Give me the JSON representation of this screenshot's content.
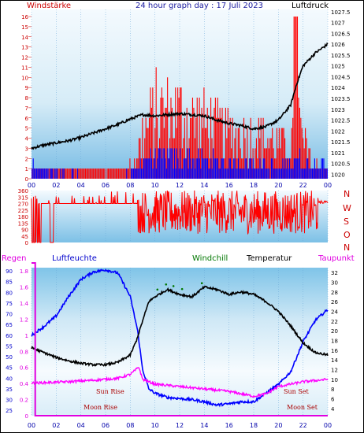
{
  "header": {
    "left_label": "Windstärke",
    "title": "24 hour graph day : 17 Juli 2023",
    "right_label": "Luftdruck"
  },
  "direction_letters": [
    "N",
    "W",
    "S",
    "O",
    "N"
  ],
  "bottom_header": {
    "rain": "Regen",
    "humidity": "Luftfeuchte",
    "windchill": "Windchill",
    "temperature": "Temperatur",
    "dewpoint": "Taupunkt"
  },
  "annotations": {
    "sun_rise": "Sun Rise",
    "sun_set": "Sun Set",
    "moon_rise": "Moon Rise",
    "moon_set": "Moon Set"
  },
  "colors": {
    "title": "#1a1aa0",
    "wind_label": "#cc0000",
    "gust": "#ff0000",
    "avg_wind": "#0000ff",
    "pressure": "#000000",
    "direction": "#ff0000",
    "rain": "#e000e0",
    "humidity": "#0000ff",
    "windchill": "#007700",
    "temperature": "#000000",
    "dewpoint": "#ff00ff",
    "axis_blue": "#0000cc"
  },
  "chart_data": [
    {
      "type": "bar",
      "name": "wind-pressure",
      "x_ticks": [
        "00",
        "02",
        "04",
        "06",
        "08",
        "10",
        "12",
        "14",
        "16",
        "18",
        "20",
        "22",
        "00"
      ],
      "y_left_ticks": [
        "0",
        "1",
        "2",
        "3",
        "4",
        "5",
        "6",
        "7",
        "8",
        "9",
        "10",
        "11",
        "12",
        "13",
        "14",
        "15",
        "16"
      ],
      "y_left_range": [
        0,
        16.7
      ],
      "y_right_ticks": [
        "1020",
        "1020.5",
        "1021",
        "1021.5",
        "1022",
        "1022.5",
        "1023",
        "1023.5",
        "1024",
        "1024.5",
        "1025",
        "1025.5",
        "1026",
        "1026.5",
        "1027",
        "1027.5"
      ],
      "y_right_range": [
        1019.8,
        1027.6
      ],
      "pressure_keypoints": [
        [
          0,
          1021.2
        ],
        [
          1,
          1021.35
        ],
        [
          2,
          1021.45
        ],
        [
          3,
          1021.55
        ],
        [
          4,
          1021.7
        ],
        [
          5,
          1021.9
        ],
        [
          6,
          1022.1
        ],
        [
          7,
          1022.3
        ],
        [
          8,
          1022.55
        ],
        [
          9,
          1022.75
        ],
        [
          10,
          1022.7
        ],
        [
          11,
          1022.75
        ],
        [
          12,
          1022.8
        ],
        [
          13,
          1022.75
        ],
        [
          14,
          1022.7
        ],
        [
          15,
          1022.5
        ],
        [
          16,
          1022.35
        ],
        [
          17,
          1022.25
        ],
        [
          18,
          1022.1
        ],
        [
          19,
          1022.2
        ],
        [
          20,
          1022.5
        ],
        [
          21,
          1023.2
        ],
        [
          21.5,
          1024.2
        ],
        [
          22,
          1025.0
        ],
        [
          23,
          1025.6
        ],
        [
          24,
          1026.0
        ]
      ],
      "gust_levels": [
        [
          0,
          1
        ],
        [
          6,
          0
        ],
        [
          8,
          1
        ],
        [
          8.5,
          2
        ],
        [
          9,
          4
        ],
        [
          10,
          6
        ],
        [
          12,
          6
        ],
        [
          14,
          5
        ],
        [
          16,
          4
        ],
        [
          18,
          4
        ],
        [
          20,
          3
        ],
        [
          21,
          3
        ],
        [
          21.5,
          6
        ],
        [
          22,
          3
        ],
        [
          23,
          1
        ],
        [
          24,
          1
        ]
      ],
      "avg_levels": [
        [
          0,
          1
        ],
        [
          6,
          0
        ],
        [
          8,
          0.5
        ],
        [
          8.5,
          1
        ],
        [
          9,
          2
        ],
        [
          12,
          2
        ],
        [
          16,
          1.5
        ],
        [
          20,
          1
        ],
        [
          21.5,
          2
        ],
        [
          22,
          1.5
        ],
        [
          24,
          1
        ]
      ]
    },
    {
      "type": "scatter",
      "name": "wind-direction",
      "y_ticks": [
        "0",
        "45",
        "90",
        "135",
        "180",
        "225",
        "270",
        "315",
        "360"
      ],
      "y_range": [
        0,
        360
      ],
      "segments": [
        [
          0,
          310
        ],
        [
          8,
          320
        ],
        [
          8.6,
          300
        ],
        [
          24,
          300
        ]
      ]
    },
    {
      "type": "line",
      "name": "temperature-humidity-rain",
      "x_ticks": [
        "00",
        "02",
        "04",
        "06",
        "08",
        "10",
        "12",
        "14",
        "16",
        "18",
        "20",
        "22",
        "00"
      ],
      "rain_ticks": [
        "0",
        "0.2",
        "0.4",
        "0.6",
        "0.8",
        "1",
        "1.2",
        "1.4",
        "1.6",
        "1.8"
      ],
      "rain_range": [
        0,
        1.9
      ],
      "humidity_ticks": [
        "25",
        "30",
        "35",
        "40",
        "45",
        "50",
        "55",
        "60",
        "65",
        "70",
        "75",
        "80",
        "85",
        "90"
      ],
      "humidity_range": [
        22.5,
        91.5
      ],
      "temp_ticks": [
        "4",
        "6",
        "8",
        "10",
        "12",
        "14",
        "16",
        "18",
        "20",
        "22",
        "24",
        "26",
        "28",
        "30",
        "32"
      ],
      "temp_range": [
        2.5,
        33
      ],
      "series": [
        {
          "name": "Temperatur",
          "points": [
            [
              0,
              16.5
            ],
            [
              1,
              15.5
            ],
            [
              2,
              14.5
            ],
            [
              3,
              13.8
            ],
            [
              4,
              13.3
            ],
            [
              5,
              13
            ],
            [
              6,
              13
            ],
            [
              7,
              13.5
            ],
            [
              8,
              15
            ],
            [
              8.5,
              18
            ],
            [
              9,
              22
            ],
            [
              9.5,
              26
            ],
            [
              10,
              27
            ],
            [
              11,
              28.5
            ],
            [
              12,
              27.5
            ],
            [
              13,
              27
            ],
            [
              14,
              29
            ],
            [
              15,
              28.5
            ],
            [
              16,
              27.5
            ],
            [
              17,
              28
            ],
            [
              18,
              27.5
            ],
            [
              19,
              26
            ],
            [
              20,
              24
            ],
            [
              21,
              21
            ],
            [
              22,
              17.5
            ],
            [
              23,
              15.5
            ],
            [
              24,
              15
            ]
          ]
        },
        {
          "name": "Taupunkt",
          "points": [
            [
              0,
              9.2
            ],
            [
              3,
              9.5
            ],
            [
              5,
              9.8
            ],
            [
              7,
              10.2
            ],
            [
              8,
              11
            ],
            [
              8.7,
              12.5
            ],
            [
              9,
              10
            ],
            [
              10,
              9
            ],
            [
              12,
              8.5
            ],
            [
              14,
              8
            ],
            [
              16,
              7.5
            ],
            [
              18,
              6.5
            ],
            [
              19,
              7
            ],
            [
              20,
              8.5
            ],
            [
              22,
              9.5
            ],
            [
              24,
              10
            ]
          ]
        },
        {
          "name": "Luftfeuchte",
          "points": [
            [
              0,
              60
            ],
            [
              1,
              64
            ],
            [
              2,
              69
            ],
            [
              3,
              78
            ],
            [
              4,
              86
            ],
            [
              5,
              89.5
            ],
            [
              6,
              90.5
            ],
            [
              7,
              89
            ],
            [
              8,
              78
            ],
            [
              8.6,
              62
            ],
            [
              9,
              44
            ],
            [
              9.5,
              35
            ],
            [
              10,
              33
            ],
            [
              11,
              31
            ],
            [
              12,
              30.5
            ],
            [
              13,
              30
            ],
            [
              14,
              29
            ],
            [
              15,
              27.5
            ],
            [
              16,
              28
            ],
            [
              17,
              29
            ],
            [
              18,
              29
            ],
            [
              19,
              33
            ],
            [
              20,
              37
            ],
            [
              21,
              43
            ],
            [
              22,
              57
            ],
            [
              23,
              67
            ],
            [
              24,
              72
            ]
          ]
        },
        {
          "name": "Regen",
          "points": [
            [
              0,
              1.9
            ],
            [
              0.3,
              1.9
            ],
            [
              0.3,
              0
            ],
            [
              24,
              0
            ]
          ]
        }
      ]
    }
  ]
}
